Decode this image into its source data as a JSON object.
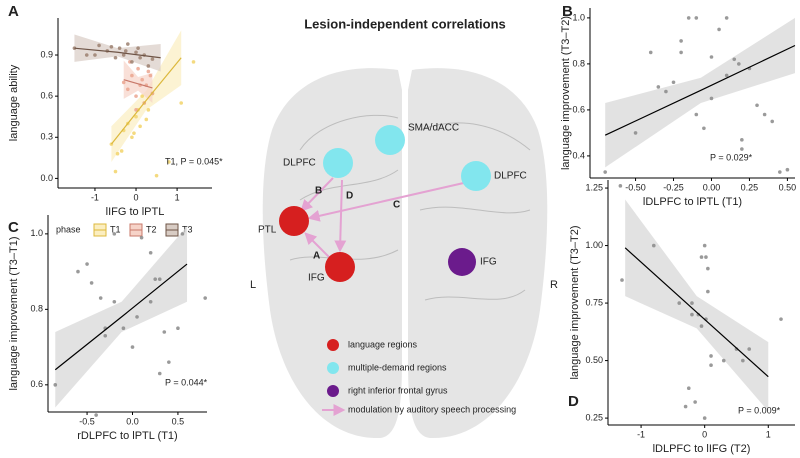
{
  "panel_labels": [
    "A",
    "B",
    "C",
    "D"
  ],
  "chart_data": [
    {
      "type": "scatter",
      "xlabel": "lIFG to lPTL",
      "ylabel": "language ability",
      "xlim": [
        -1.9,
        1.85
      ],
      "ylim": [
        -0.07,
        1.17
      ],
      "xticks": [
        -1,
        0,
        1
      ],
      "yticks": [
        {
          "value": 0,
          "label": "0.0"
        },
        0.3,
        0.6,
        0.9
      ],
      "legend_title": "phase",
      "annotation": "T1, P = 0.045*",
      "annotation_color": "#d9b93a",
      "series": [
        {
          "name": "T1",
          "color": "#f2d46a",
          "line_color": "#dcb83c",
          "band_color": "#fbeec0",
          "x": [
            -0.6,
            -0.45,
            -0.3,
            -0.2,
            -0.1,
            0.0,
            0.05,
            0.1,
            0.2,
            0.3,
            -0.35,
            0.15,
            0.5,
            0.8,
            1.1,
            1.4,
            -0.5,
            0.25,
            -0.05,
            0.4
          ],
          "values": [
            0.25,
            0.18,
            0.35,
            0.4,
            0.3,
            0.45,
            0.5,
            0.38,
            0.55,
            0.5,
            0.2,
            0.6,
            0.02,
            0.12,
            0.55,
            0.85,
            0.05,
            0.43,
            0.33,
            0.62
          ],
          "fit_x": [
            -0.6,
            0.25,
            1.1
          ],
          "fit_y": [
            0.25,
            0.57,
            0.88
          ],
          "band_lower": [
            0.12,
            0.5,
            0.68
          ],
          "band_upper": [
            0.38,
            0.64,
            1.08
          ]
        },
        {
          "name": "T2",
          "color": "#eba58f",
          "line_color": "#c8786a",
          "band_color": "#f6d3c8",
          "x": [
            -0.3,
            -0.2,
            -0.1,
            0,
            0.05,
            0.1,
            0.15,
            0.2,
            0.3,
            0.4,
            -0.15,
            0.0,
            0.25,
            0.35
          ],
          "values": [
            0.7,
            0.65,
            0.75,
            0.6,
            0.8,
            0.68,
            0.72,
            0.55,
            0.78,
            0.62,
            0.85,
            0.5,
            0.68,
            0.75
          ],
          "fit_x": [
            -0.3,
            0.05,
            0.4
          ],
          "fit_y": [
            0.72,
            0.69,
            0.66
          ],
          "band_lower": [
            0.58,
            0.64,
            0.55
          ],
          "band_upper": [
            0.86,
            0.74,
            0.77
          ]
        },
        {
          "name": "T3",
          "color": "#9c8070",
          "line_color": "#6e5446",
          "band_color": "#d8ccc4",
          "x": [
            -1.5,
            -1.2,
            -0.9,
            -0.7,
            -0.5,
            -0.4,
            -0.3,
            -0.2,
            -0.1,
            0,
            0.1,
            0.2,
            0.3,
            -0.6,
            -1.0,
            0.4,
            -0.25,
            0.05
          ],
          "values": [
            0.95,
            0.9,
            0.97,
            0.93,
            0.88,
            0.95,
            0.9,
            0.98,
            0.85,
            0.92,
            0.88,
            0.9,
            0.82,
            0.96,
            0.9,
            0.87,
            0.93,
            0.95
          ],
          "fit_x": [
            -1.5,
            -0.45,
            0.6
          ],
          "fit_y": [
            0.95,
            0.92,
            0.88
          ],
          "band_lower": [
            0.85,
            0.89,
            0.78
          ],
          "band_upper": [
            1.05,
            0.95,
            0.98
          ]
        }
      ]
    },
    {
      "type": "scatter",
      "xlabel": "lDLPFC to lPTL (T1)",
      "ylabel": "language improvement (T3–T2)",
      "xlim": [
        -0.8,
        0.55
      ],
      "ylim": [
        0.304,
        1.043
      ],
      "xticks": [
        {
          "value": -0.5,
          "label": "-0.50"
        },
        {
          "value": -0.25,
          "label": "-0.25"
        },
        {
          "value": 0,
          "label": "0.00"
        },
        0.25,
        {
          "value": 0.5,
          "label": "0.50"
        }
      ],
      "yticks": [
        0.4,
        0.6,
        0.8,
        {
          "value": 1,
          "label": "1.0"
        }
      ],
      "annotation": "P = 0.029*",
      "annotation_color": "#000000",
      "series": [
        {
          "color": "#888888",
          "line_color": "#000000",
          "band_color": "#d6d6d6",
          "x": [
            -0.7,
            -0.6,
            -0.5,
            -0.4,
            -0.3,
            -0.25,
            -0.2,
            -0.15,
            -0.1,
            -0.05,
            0,
            0.05,
            0.1,
            0.15,
            0.2,
            0.25,
            0.3,
            0.35,
            0.4,
            0.45,
            -0.35,
            -0.1,
            0.18,
            0.2,
            0.5,
            -0.2,
            0,
            0.1
          ],
          "values": [
            0.33,
            0.27,
            0.5,
            0.85,
            0.68,
            0.72,
            0.9,
            1.0,
            0.58,
            0.52,
            0.83,
            0.95,
            1.0,
            0.82,
            0.43,
            0.78,
            0.62,
            0.58,
            0.55,
            0.33,
            0.7,
            1.0,
            0.8,
            0.47,
            0.34,
            0.85,
            0.65,
            0.75
          ],
          "fit_x": [
            -0.7,
            -0.07,
            0.55
          ],
          "fit_y": [
            0.49,
            0.685,
            0.88
          ],
          "band_lower": [
            0.35,
            0.63,
            0.76
          ],
          "band_upper": [
            0.63,
            0.74,
            1.0
          ]
        }
      ]
    },
    {
      "type": "scatter",
      "xlabel": "rDLPFC to lPTL (T1)",
      "ylabel": "language improvement (T3–T1)",
      "xlim": [
        -0.93,
        0.82
      ],
      "ylim": [
        0.528,
        1.05
      ],
      "xticks": [
        -0.5,
        {
          "value": 0,
          "label": "0.0"
        },
        0.5
      ],
      "yticks": [
        0.6,
        0.8,
        {
          "value": 1,
          "label": "1.0"
        }
      ],
      "annotation": "P = 0.044*",
      "annotation_color": "#000000",
      "series": [
        {
          "color": "#888888",
          "line_color": "#000000",
          "band_color": "#d6d6d6",
          "x": [
            -0.85,
            -0.6,
            -0.5,
            -0.45,
            -0.4,
            -0.35,
            -0.3,
            -0.2,
            -0.1,
            0,
            0.05,
            0.1,
            0.2,
            0.25,
            0.3,
            0.35,
            0.4,
            0.5,
            0.55,
            0.8,
            -0.3,
            0.2,
            0.3,
            -0.2
          ],
          "values": [
            0.6,
            0.9,
            0.92,
            0.87,
            0.52,
            0.83,
            0.75,
            1.0,
            0.75,
            0.7,
            0.78,
            0.99,
            0.82,
            0.88,
            0.88,
            0.74,
            0.66,
            0.75,
            1.0,
            0.83,
            0.73,
            0.95,
            0.63,
            0.82
          ],
          "fit_x": [
            -0.85,
            -0.12,
            0.6
          ],
          "fit_y": [
            0.64,
            0.78,
            0.92
          ],
          "band_lower": [
            0.54,
            0.74,
            0.82
          ],
          "band_upper": [
            0.74,
            0.82,
            1.02
          ]
        }
      ]
    },
    {
      "type": "scatter",
      "xlabel": "lDLPFC to lIFG (T2)",
      "ylabel": "language improvement (T3–T2)",
      "xlim": [
        -1.52,
        1.42
      ],
      "ylim": [
        0.22,
        1.285
      ],
      "xticks": [
        -1,
        0,
        1
      ],
      "yticks": [
        0.25,
        {
          "value": 0.5,
          "label": "0.50"
        },
        0.75,
        {
          "value": 1,
          "label": "1.00"
        },
        1.25
      ],
      "annotation": "P = 0.009*",
      "annotation_color": "#000000",
      "series": [
        {
          "color": "#888888",
          "line_color": "#000000",
          "band_color": "#d6d6d6",
          "x": [
            -1.3,
            -0.8,
            -0.4,
            -0.3,
            -0.2,
            -0.1,
            -0.05,
            0,
            0.02,
            0.05,
            0.1,
            -0.15,
            0.3,
            0.5,
            0.7,
            1.2,
            -0.25,
            0,
            0.05,
            -0.05,
            0.1,
            0.6,
            -0.2,
            0.02
          ],
          "values": [
            0.85,
            1.0,
            0.75,
            0.3,
            0.75,
            0.7,
            0.95,
            1.0,
            0.68,
            0.9,
            0.52,
            0.32,
            0.5,
            0.55,
            0.55,
            0.68,
            0.38,
            0.25,
            0.8,
            0.65,
            0.48,
            0.5,
            0.7,
            0.95
          ],
          "fit_x": [
            -1.25,
            -0.125,
            1.0
          ],
          "fit_y": [
            0.99,
            0.71,
            0.43
          ],
          "band_lower": [
            0.78,
            0.64,
            0.28
          ],
          "band_upper": [
            1.2,
            0.78,
            0.58
          ]
        }
      ]
    }
  ],
  "diagram": {
    "title": "Lesion-independent correlations",
    "regions": [
      "SMA/dACC",
      "DLPFC",
      "DLPFC",
      "PTL",
      "IFG",
      "IFG"
    ],
    "edges": [
      "B",
      "D",
      "C",
      "A"
    ],
    "sides": [
      "L",
      "R"
    ],
    "legend": [
      "language regions",
      "multiple-demand regions",
      "right inferior frontal gyrus",
      "modulation by auditory speech processing"
    ]
  }
}
